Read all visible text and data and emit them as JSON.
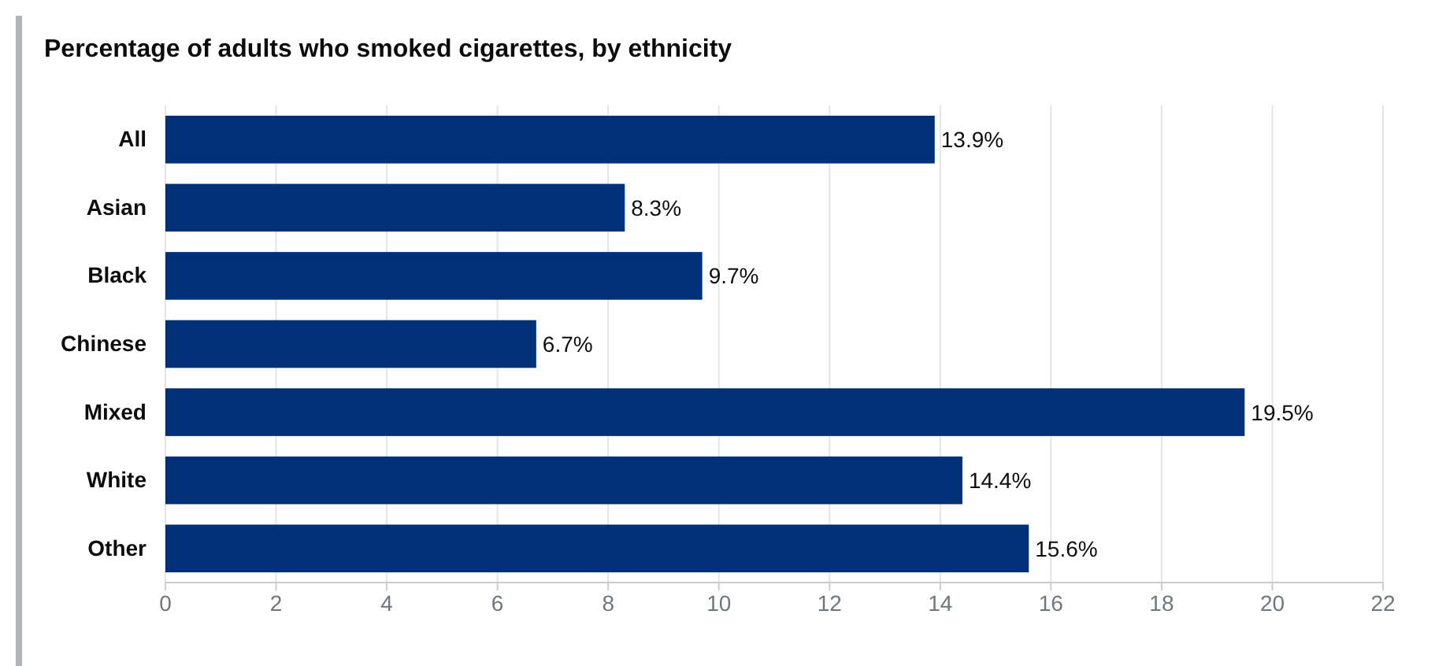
{
  "chart_data": {
    "type": "bar",
    "orientation": "horizontal",
    "title": "Percentage of adults who smoked cigarettes, by ethnicity",
    "categories": [
      "All",
      "Asian",
      "Black",
      "Chinese",
      "Mixed",
      "White",
      "Other"
    ],
    "values": [
      13.9,
      8.3,
      9.7,
      6.7,
      19.5,
      14.4,
      15.6
    ],
    "value_labels": [
      "13.9%",
      "8.3%",
      "9.7%",
      "6.7%",
      "19.5%",
      "14.4%",
      "15.6%"
    ],
    "color": "#003078",
    "xlim": [
      0,
      22
    ],
    "xticks": [
      0,
      2,
      4,
      6,
      8,
      10,
      12,
      14,
      16,
      18,
      20,
      22
    ],
    "grid": "x"
  }
}
